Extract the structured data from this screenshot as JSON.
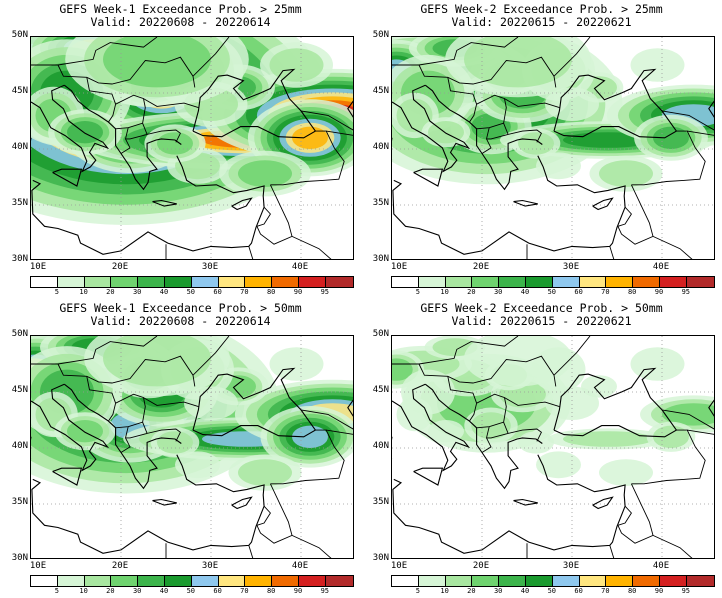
{
  "panels": [
    {
      "title_line1": "GEFS Week-1 Exceedance Prob. > 25mm",
      "title_line2": "Valid: 20220608 - 20220614",
      "intensity": 1.0
    },
    {
      "title_line1": "GEFS Week-2 Exceedance Prob. > 25mm",
      "title_line2": "Valid: 20220615 - 20220621",
      "intensity": 0.55
    },
    {
      "title_line1": "GEFS Week-1 Exceedance Prob. > 50mm",
      "title_line2": "Valid: 20220608 - 20220614",
      "intensity": 0.7
    },
    {
      "title_line1": "GEFS Week-2 Exceedance Prob. > 50mm",
      "title_line2": "Valid: 20220615 - 20220621",
      "intensity": 0.25
    }
  ],
  "axes": {
    "lat_labels": [
      "50N",
      "45N",
      "40N",
      "35N",
      "30N"
    ],
    "lon_labels": [
      "10E",
      "20E",
      "30E",
      "40E"
    ]
  },
  "colorbar": {
    "ticks": [
      "5",
      "10",
      "20",
      "30",
      "40",
      "50",
      "60",
      "70",
      "80",
      "90",
      "95"
    ],
    "colors": [
      "#ffffff",
      "#d6f5d6",
      "#a8e6a0",
      "#6fd36f",
      "#3cb44b",
      "#1a9a2e",
      "#8fc8ee",
      "#ffe680",
      "#ffb300",
      "#f06a00",
      "#d42020",
      "#b22a2a"
    ]
  }
}
